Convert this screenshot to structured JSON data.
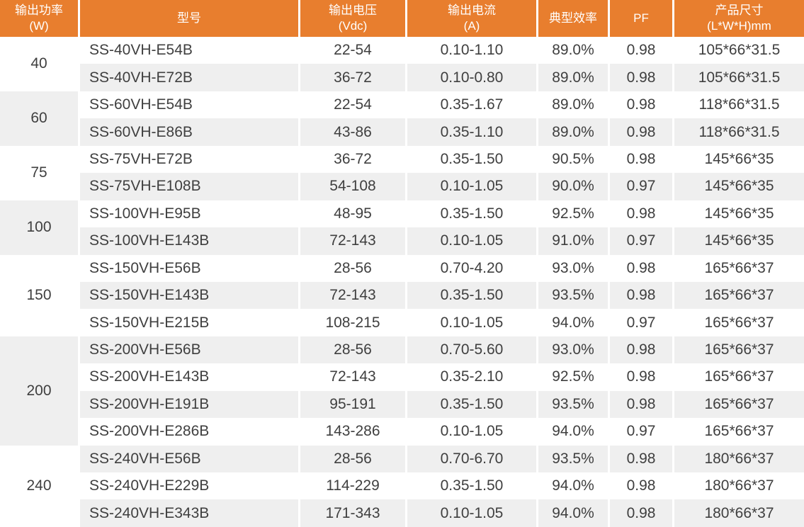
{
  "table": {
    "colors": {
      "header_bg": "#E87E2E",
      "header_text": "#FFFFFF",
      "row_bg": "#FFFFFF",
      "row_alt_bg": "#EFEFEF",
      "body_text": "#3F3F3F"
    },
    "columns": [
      {
        "id": "power",
        "line1": "输出功率",
        "line2": "(W)"
      },
      {
        "id": "model",
        "line1": "型号",
        "line2": ""
      },
      {
        "id": "voltage",
        "line1": "输出电压",
        "line2": "(Vdc)"
      },
      {
        "id": "current",
        "line1": "输出电流",
        "line2": "(A)"
      },
      {
        "id": "efficiency",
        "line1": "典型效率",
        "line2": ""
      },
      {
        "id": "pf",
        "line1": "PF",
        "line2": ""
      },
      {
        "id": "size",
        "line1": "产品尺寸",
        "line2": "(L*W*H)mm"
      }
    ],
    "groups": [
      {
        "power": "40",
        "models": [
          {
            "model": "SS-40VH-E54B",
            "voltage": "22-54",
            "current": "0.10-1.10",
            "efficiency": "89.0%",
            "pf": "0.98",
            "size": "105*66*31.5"
          },
          {
            "model": "SS-40VH-E72B",
            "voltage": "36-72",
            "current": "0.10-0.80",
            "efficiency": "89.0%",
            "pf": "0.98",
            "size": "105*66*31.5"
          }
        ]
      },
      {
        "power": "60",
        "models": [
          {
            "model": "SS-60VH-E54B",
            "voltage": "22-54",
            "current": "0.35-1.67",
            "efficiency": "89.0%",
            "pf": "0.98",
            "size": "118*66*31.5"
          },
          {
            "model": "SS-60VH-E86B",
            "voltage": "43-86",
            "current": "0.35-1.10",
            "efficiency": "89.0%",
            "pf": "0.98",
            "size": "118*66*31.5"
          }
        ]
      },
      {
        "power": "75",
        "models": [
          {
            "model": "SS-75VH-E72B",
            "voltage": "36-72",
            "current": "0.35-1.50",
            "efficiency": "90.5%",
            "pf": "0.98",
            "size": "145*66*35"
          },
          {
            "model": "SS-75VH-E108B",
            "voltage": "54-108",
            "current": "0.10-1.05",
            "efficiency": "90.0%",
            "pf": "0.97",
            "size": "145*66*35"
          }
        ]
      },
      {
        "power": "100",
        "models": [
          {
            "model": "SS-100VH-E95B",
            "voltage": "48-95",
            "current": "0.35-1.50",
            "efficiency": "92.5%",
            "pf": "0.98",
            "size": "145*66*35"
          },
          {
            "model": "SS-100VH-E143B",
            "voltage": "72-143",
            "current": "0.10-1.05",
            "efficiency": "91.0%",
            "pf": "0.97",
            "size": "145*66*35"
          }
        ]
      },
      {
        "power": "150",
        "models": [
          {
            "model": "SS-150VH-E56B",
            "voltage": "28-56",
            "current": "0.70-4.20",
            "efficiency": "93.0%",
            "pf": "0.98",
            "size": "165*66*37"
          },
          {
            "model": "SS-150VH-E143B",
            "voltage": "72-143",
            "current": "0.35-1.50",
            "efficiency": "93.5%",
            "pf": "0.98",
            "size": "165*66*37"
          },
          {
            "model": "SS-150VH-E215B",
            "voltage": "108-215",
            "current": "0.10-1.05",
            "efficiency": "94.0%",
            "pf": "0.97",
            "size": "165*66*37"
          }
        ]
      },
      {
        "power": "200",
        "models": [
          {
            "model": "SS-200VH-E56B",
            "voltage": "28-56",
            "current": "0.70-5.60",
            "efficiency": "93.0%",
            "pf": "0.98",
            "size": "165*66*37"
          },
          {
            "model": "SS-200VH-E143B",
            "voltage": "72-143",
            "current": "0.35-2.10",
            "efficiency": "92.5%",
            "pf": "0.98",
            "size": "165*66*37"
          },
          {
            "model": "SS-200VH-E191B",
            "voltage": "95-191",
            "current": "0.35-1.50",
            "efficiency": "93.5%",
            "pf": "0.98",
            "size": "165*66*37"
          },
          {
            "model": "SS-200VH-E286B",
            "voltage": "143-286",
            "current": "0.10-1.05",
            "efficiency": "94.0%",
            "pf": "0.97",
            "size": "165*66*37"
          }
        ]
      },
      {
        "power": "240",
        "models": [
          {
            "model": "SS-240VH-E56B",
            "voltage": "28-56",
            "current": "0.70-6.70",
            "efficiency": "93.5%",
            "pf": "0.98",
            "size": "180*66*37"
          },
          {
            "model": "SS-240VH-E229B",
            "voltage": "114-229",
            "current": "0.35-1.50",
            "efficiency": "94.0%",
            "pf": "0.98",
            "size": "180*66*37"
          },
          {
            "model": "SS-240VH-E343B",
            "voltage": "171-343",
            "current": "0.10-1.05",
            "efficiency": "94.0%",
            "pf": "0.98",
            "size": "180*66*37"
          }
        ]
      }
    ]
  }
}
